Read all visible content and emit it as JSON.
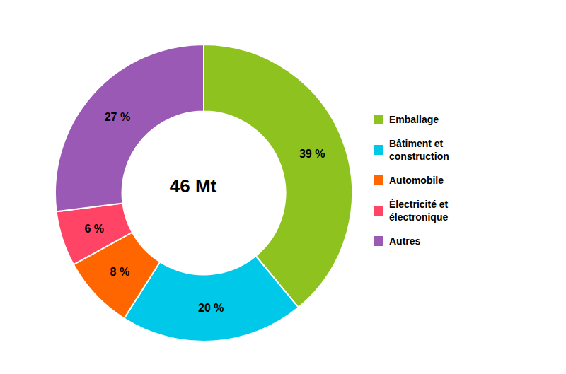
{
  "chart_data": {
    "type": "pie",
    "categories": [
      "Emballage",
      "Bâtiment et\nconstruction",
      "Automobile",
      "Électricité et\nélectronique",
      "Autres"
    ],
    "values": [
      39,
      20,
      8,
      6,
      27
    ],
    "value_labels": [
      "39 %",
      "20 %",
      "8 %",
      "6 %",
      "27 %"
    ],
    "colors": [
      "#8dc21f",
      "#00c8e8",
      "#ff6600",
      "#ff4466",
      "#9b59b6"
    ],
    "annotations": [
      "46 Mt"
    ],
    "data_labels": true,
    "legend": "right"
  }
}
